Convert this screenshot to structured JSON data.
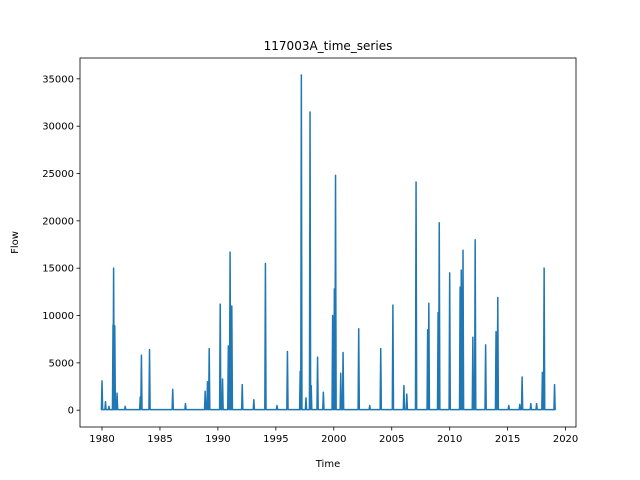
{
  "chart_data": {
    "type": "line",
    "title": "117003A_time_series",
    "xlabel": "Time",
    "ylabel": "Flow",
    "xlim": [
      1978.1,
      2020.9
    ],
    "ylim": [
      -1775,
      37200
    ],
    "xticks": [
      1980,
      1985,
      1990,
      1995,
      2000,
      2005,
      2010,
      2015,
      2020
    ],
    "yticks": [
      0,
      5000,
      10000,
      15000,
      20000,
      25000,
      30000,
      35000
    ],
    "grid": false,
    "legend": "none",
    "series": [
      {
        "color": "#1f77b4",
        "peaks": [
          [
            1980.0,
            3100
          ],
          [
            1980.3,
            900
          ],
          [
            1980.6,
            400
          ],
          [
            1980.95,
            9000
          ],
          [
            1981.0,
            15000
          ],
          [
            1981.1,
            8900
          ],
          [
            1981.3,
            1800
          ],
          [
            1982.0,
            400
          ],
          [
            1983.3,
            1400
          ],
          [
            1983.4,
            5800
          ],
          [
            1984.1,
            6400
          ],
          [
            1986.1,
            2200
          ],
          [
            1987.2,
            700
          ],
          [
            1988.9,
            2000
          ],
          [
            1989.1,
            3000
          ],
          [
            1989.25,
            6500
          ],
          [
            1990.2,
            11200
          ],
          [
            1990.4,
            3300
          ],
          [
            1990.9,
            6800
          ],
          [
            1991.05,
            16700
          ],
          [
            1991.2,
            11000
          ],
          [
            1992.1,
            2700
          ],
          [
            1993.1,
            1100
          ],
          [
            1994.1,
            15500
          ],
          [
            1995.1,
            500
          ],
          [
            1996.0,
            6200
          ],
          [
            1997.1,
            4100
          ],
          [
            1997.2,
            35400
          ],
          [
            1997.6,
            1300
          ],
          [
            1997.95,
            31500
          ],
          [
            1998.05,
            2600
          ],
          [
            1998.6,
            5600
          ],
          [
            1999.1,
            1900
          ],
          [
            1999.9,
            10000
          ],
          [
            2000.05,
            12800
          ],
          [
            2000.15,
            24800
          ],
          [
            2000.6,
            3900
          ],
          [
            2000.8,
            6100
          ],
          [
            2002.15,
            8600
          ],
          [
            2003.1,
            500
          ],
          [
            2004.05,
            6500
          ],
          [
            2005.1,
            11100
          ],
          [
            2006.05,
            2600
          ],
          [
            2006.3,
            1700
          ],
          [
            2007.1,
            24100
          ],
          [
            2008.1,
            8500
          ],
          [
            2008.2,
            11300
          ],
          [
            2009.0,
            10300
          ],
          [
            2009.1,
            19800
          ],
          [
            2010.0,
            14500
          ],
          [
            2010.9,
            13000
          ],
          [
            2011.0,
            14800
          ],
          [
            2011.15,
            16900
          ],
          [
            2012.0,
            7700
          ],
          [
            2012.2,
            18000
          ],
          [
            2013.1,
            6900
          ],
          [
            2014.0,
            8300
          ],
          [
            2014.15,
            11900
          ],
          [
            2015.1,
            500
          ],
          [
            2016.05,
            600
          ],
          [
            2016.25,
            3500
          ],
          [
            2017.0,
            700
          ],
          [
            2017.5,
            700
          ],
          [
            2018.0,
            4000
          ],
          [
            2018.15,
            15000
          ],
          [
            2019.05,
            2700
          ]
        ]
      }
    ]
  }
}
